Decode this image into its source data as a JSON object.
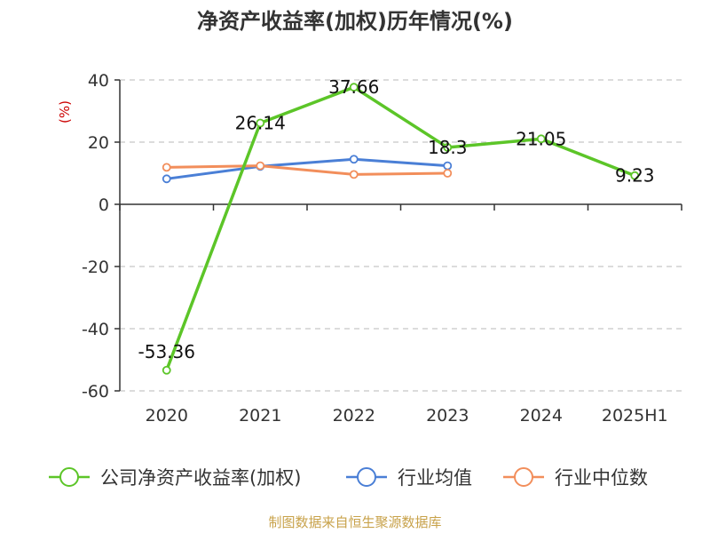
{
  "chart_data": {
    "type": "line",
    "title": "净资产收益率(加权)历年情况(%)",
    "ylabel": "(%)",
    "categories": [
      "2020",
      "2021",
      "2022",
      "2023",
      "2024",
      "2025H1"
    ],
    "ylim": [
      -60,
      40
    ],
    "yticks": [
      40,
      20,
      0,
      -20,
      -40,
      -60
    ],
    "grid": true,
    "legend_position": "bottom",
    "series": [
      {
        "name": "公司净资产收益率(加权)",
        "color": "#5cc528",
        "values": [
          -53.36,
          26.14,
          37.66,
          18.3,
          21.05,
          9.23
        ],
        "labels": [
          "-53.36",
          "26.14",
          "37.66",
          "18.3",
          "21.05",
          "9.23"
        ]
      },
      {
        "name": "行业均值",
        "color": "#4a7fd6",
        "values": [
          8.2,
          12.2,
          14.5,
          12.4,
          null,
          null
        ]
      },
      {
        "name": "行业中位数",
        "color": "#f28e5b",
        "values": [
          11.9,
          12.4,
          9.6,
          10.0,
          null,
          null
        ]
      }
    ]
  },
  "source": "制图数据来自恒生聚源数据库"
}
